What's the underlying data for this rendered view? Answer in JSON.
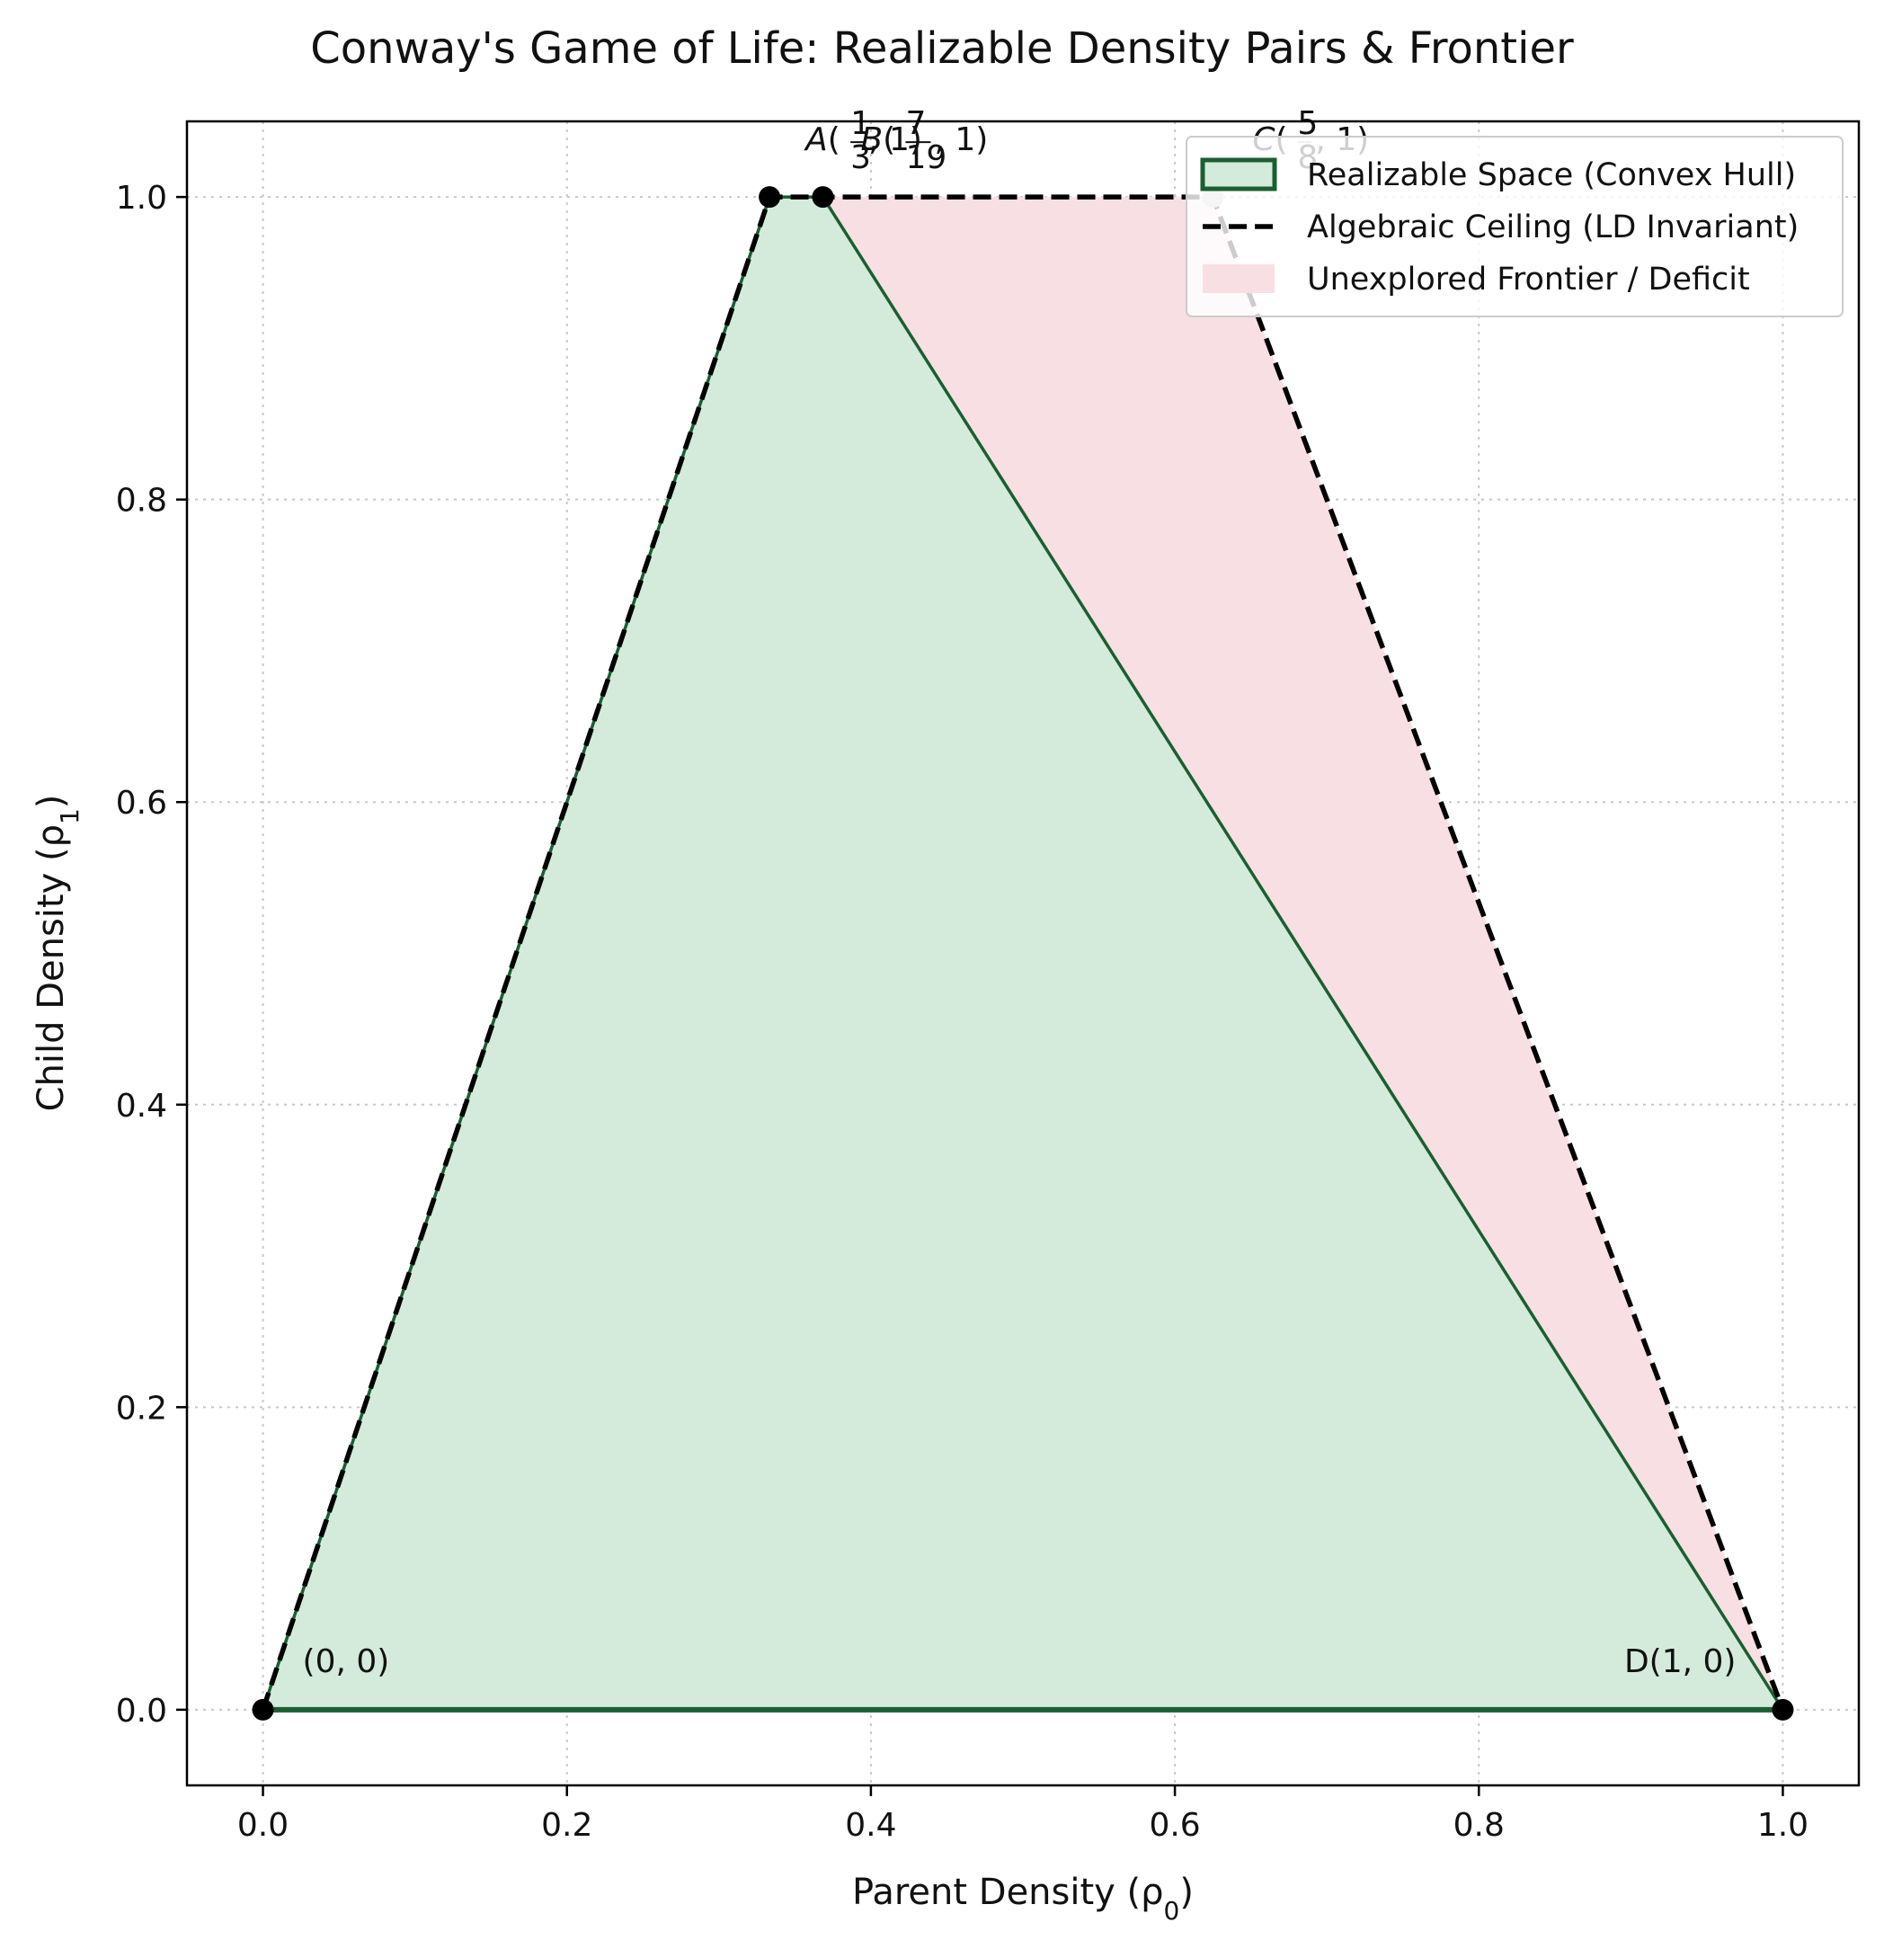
{
  "chart_data": {
    "type": "area",
    "title": "Conway's Game of Life: Realizable Density Pairs & Frontier",
    "xlabel": "Parent Density (ρ0)",
    "ylabel": "Child Density (ρ1)",
    "xlim": [
      -0.05,
      1.05
    ],
    "ylim": [
      -0.05,
      1.05
    ],
    "xticks": [
      0.0,
      0.2,
      0.4,
      0.6,
      0.8,
      1.0
    ],
    "yticks": [
      0.0,
      0.2,
      0.4,
      0.6,
      0.8,
      1.0
    ],
    "xtick_labels": [
      "0.0",
      "0.2",
      "0.4",
      "0.6",
      "0.8",
      "1.0"
    ],
    "ytick_labels": [
      "0.0",
      "0.2",
      "0.4",
      "0.6",
      "0.8",
      "1.0"
    ],
    "grid": true,
    "legend_position": "top-right",
    "series": [
      {
        "name": "Realizable Space (Convex Hull)",
        "kind": "filled-polygon",
        "fill_color": "#d4ebdb",
        "edge_color": "#1b5e32",
        "points": [
          [
            0,
            0
          ],
          [
            0.3333,
            1
          ],
          [
            0.3684,
            1
          ],
          [
            1,
            0
          ]
        ]
      },
      {
        "name": "Algebraic Ceiling (LD Invariant)",
        "kind": "dashed-line",
        "color": "#000000",
        "points": [
          [
            0,
            0
          ],
          [
            0.3333,
            1
          ],
          [
            0.625,
            1
          ],
          [
            1,
            0
          ]
        ]
      },
      {
        "name": "Unexplored Frontier / Deficit",
        "kind": "filled-polygon",
        "fill_color": "#f8dfe3",
        "points": [
          [
            0.3684,
            1
          ],
          [
            0.625,
            1
          ],
          [
            1,
            0
          ]
        ]
      }
    ],
    "points": [
      {
        "id": "origin",
        "x": 0,
        "y": 0,
        "label": "(0, 0)",
        "color": "#000000"
      },
      {
        "id": "A",
        "x": 0.3333,
        "y": 1,
        "label_name": "A",
        "label_frac_num": "1",
        "label_frac_den": "3",
        "label_suffix": ", 1)",
        "color": "#000000"
      },
      {
        "id": "B",
        "x": 0.3684,
        "y": 1,
        "label_name": "B",
        "label_frac_num": "7",
        "label_frac_den": "19",
        "label_suffix": ", 1)",
        "color": "#000000"
      },
      {
        "id": "C",
        "x": 0.625,
        "y": 1,
        "label_name": "C",
        "label_frac_num": "5",
        "label_frac_den": "8",
        "label_suffix": ", 1)",
        "color": "#cccccc"
      },
      {
        "id": "D",
        "x": 1,
        "y": 0,
        "label": "D(1, 0)",
        "color": "#000000"
      }
    ]
  }
}
